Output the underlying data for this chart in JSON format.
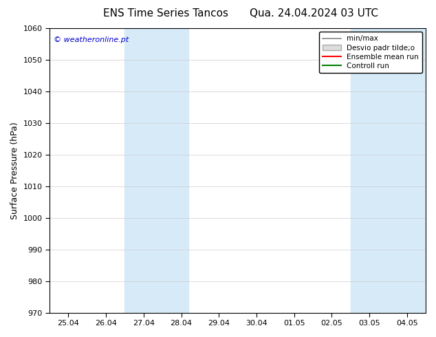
{
  "title_left": "ENS Time Series Tancos",
  "title_right": "Qua. 24.04.2024 03 UTC",
  "ylabel": "Surface Pressure (hPa)",
  "ylim": [
    970,
    1060
  ],
  "yticks": [
    970,
    980,
    990,
    1000,
    1010,
    1020,
    1030,
    1040,
    1050,
    1060
  ],
  "x_tick_positions": [
    0,
    1,
    2,
    3,
    4,
    5,
    6,
    7,
    8,
    9
  ],
  "x_tick_labels": [
    "25.04",
    "26.04",
    "27.04",
    "28.04",
    "29.04",
    "30.04",
    "01.05",
    "02.05",
    "03.05",
    "04.05"
  ],
  "xlim": [
    -0.5,
    9.5
  ],
  "band1_start": 1.5,
  "band1_end": 3.2,
  "band2_start": 7.5,
  "band2_end": 9.5,
  "shaded_color": "#d6eaf8",
  "watermark": "© weatheronline.pt",
  "watermark_color": "#0000cc",
  "bg_color": "#ffffff",
  "plot_bg_color": "#ffffff",
  "title_fontsize": 11,
  "tick_fontsize": 8,
  "ylabel_fontsize": 9,
  "legend_min_max_color": "#888888",
  "legend_fill_color": "#dddddd",
  "legend_fill_edge": "#aaaaaa",
  "legend_mean_color": "#ff0000",
  "legend_ctrl_color": "#008000"
}
